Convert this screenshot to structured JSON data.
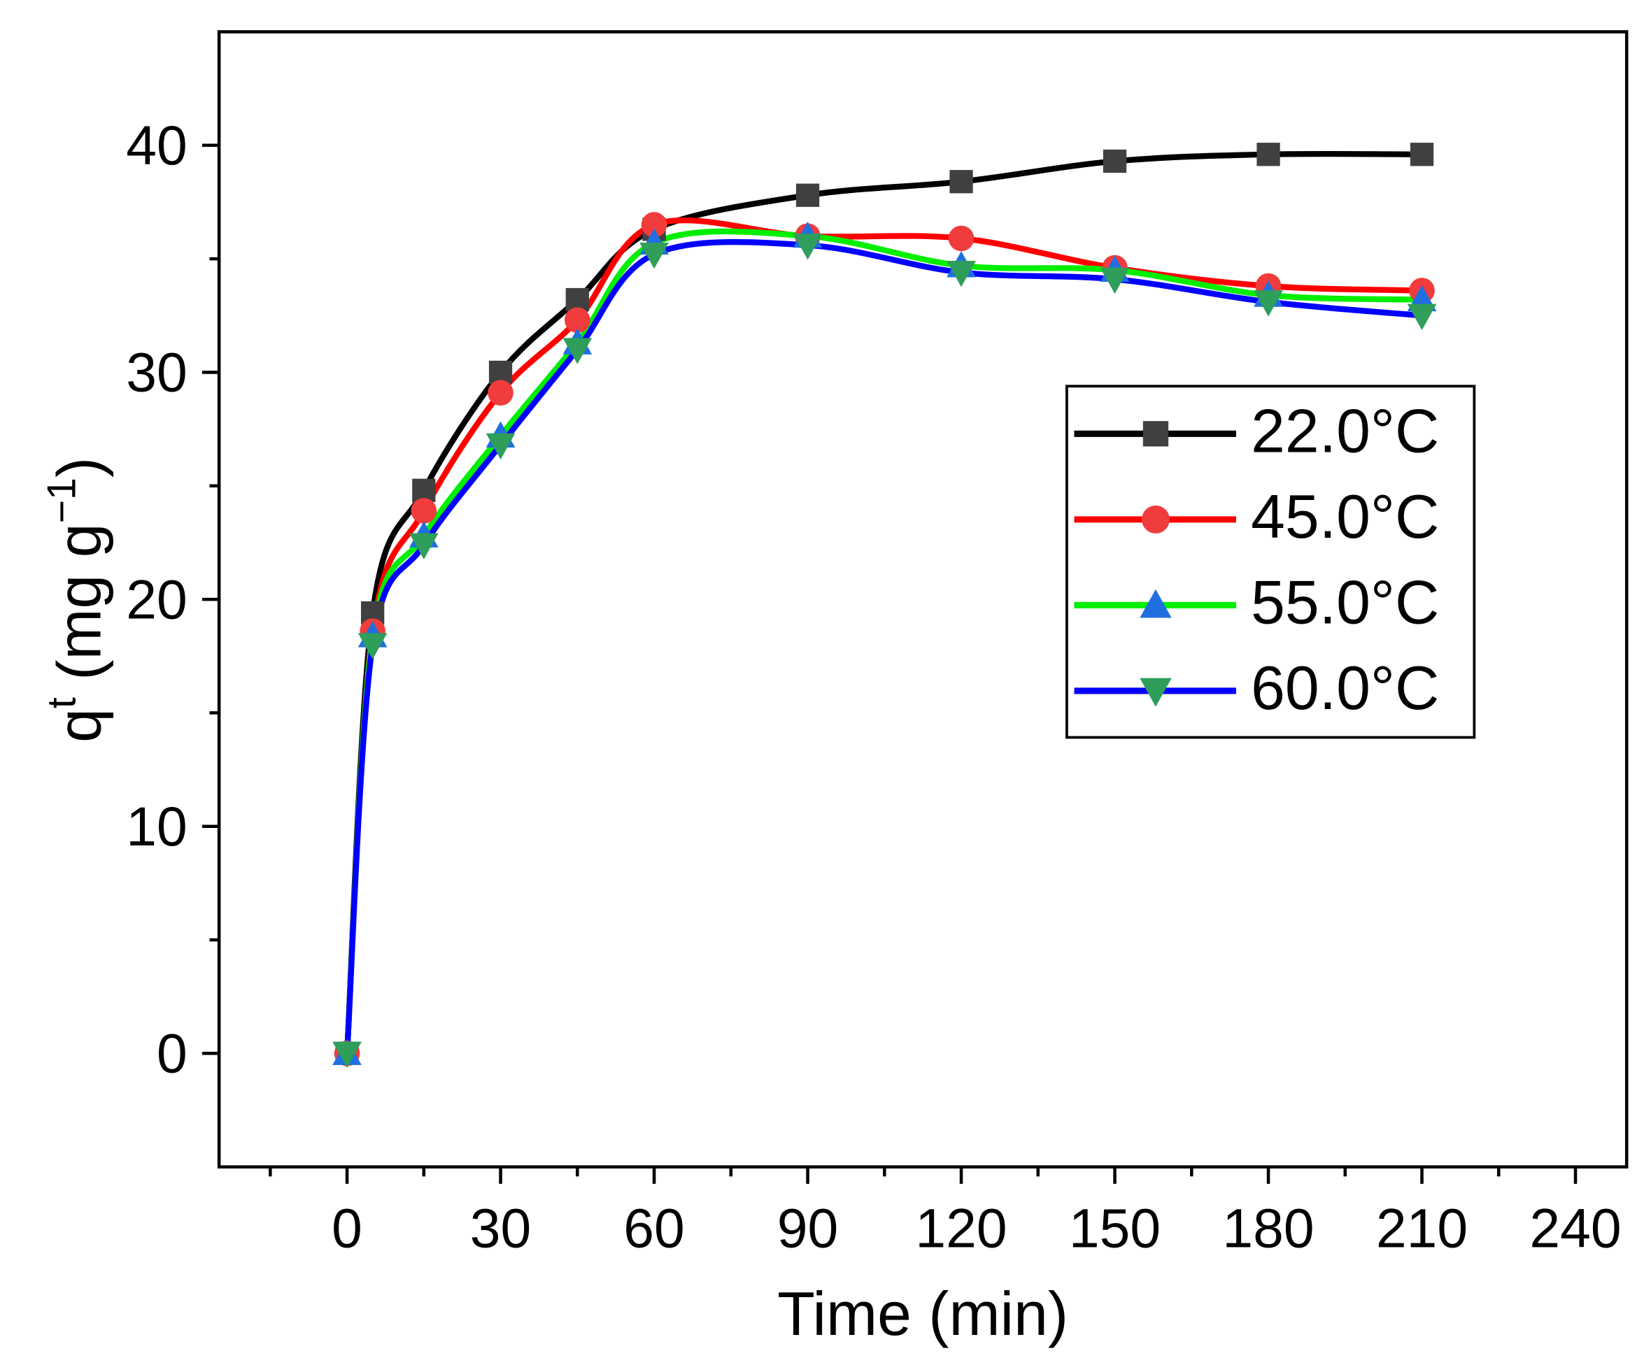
{
  "chart_data": {
    "type": "line",
    "x_label": "Time (min)",
    "y_label": {
      "main": "q",
      "sup": "t",
      "unit": " (mg g",
      "unit_sup": "−1",
      "close": ")"
    },
    "x": [
      0,
      5,
      15,
      30,
      45,
      60,
      90,
      120,
      150,
      180,
      210
    ],
    "series": [
      {
        "name": "22.0°C",
        "color": "#000000",
        "marker": "square",
        "marker_color": "#404040",
        "values": [
          0,
          19.4,
          24.8,
          30.0,
          33.2,
          36.3,
          37.8,
          38.4,
          39.3,
          39.6,
          39.6
        ]
      },
      {
        "name": "45.0°C",
        "color": "#ff0000",
        "marker": "circle",
        "marker_color": "#f03c3c",
        "values": [
          0,
          18.6,
          23.9,
          29.1,
          32.3,
          36.5,
          36.0,
          35.9,
          34.6,
          33.8,
          33.6
        ]
      },
      {
        "name": "55.0°C",
        "color": "#00ee00",
        "marker": "triangle-up",
        "marker_color": "#1f6fe0",
        "values": [
          0,
          18.4,
          22.8,
          27.2,
          31.3,
          35.7,
          36.0,
          34.7,
          34.5,
          33.4,
          33.2
        ]
      },
      {
        "name": "60.0°C",
        "color": "#0000ff",
        "marker": "triangle-down",
        "marker_color": "#2e9e5a",
        "values": [
          0,
          18.0,
          22.4,
          26.8,
          31.0,
          35.2,
          35.6,
          34.4,
          34.1,
          33.1,
          32.5
        ]
      }
    ],
    "xlim": [
      -25,
      250
    ],
    "ylim": [
      -5,
      45
    ],
    "xticks": [
      0,
      30,
      60,
      90,
      120,
      150,
      180,
      210,
      240
    ],
    "yticks": [
      0,
      10,
      20,
      30,
      40
    ],
    "xminor": [
      -15,
      15,
      45,
      75,
      105,
      135,
      165,
      195,
      225
    ],
    "yminor": [
      5,
      15,
      25,
      35
    ],
    "grid": false,
    "legend": "right"
  }
}
